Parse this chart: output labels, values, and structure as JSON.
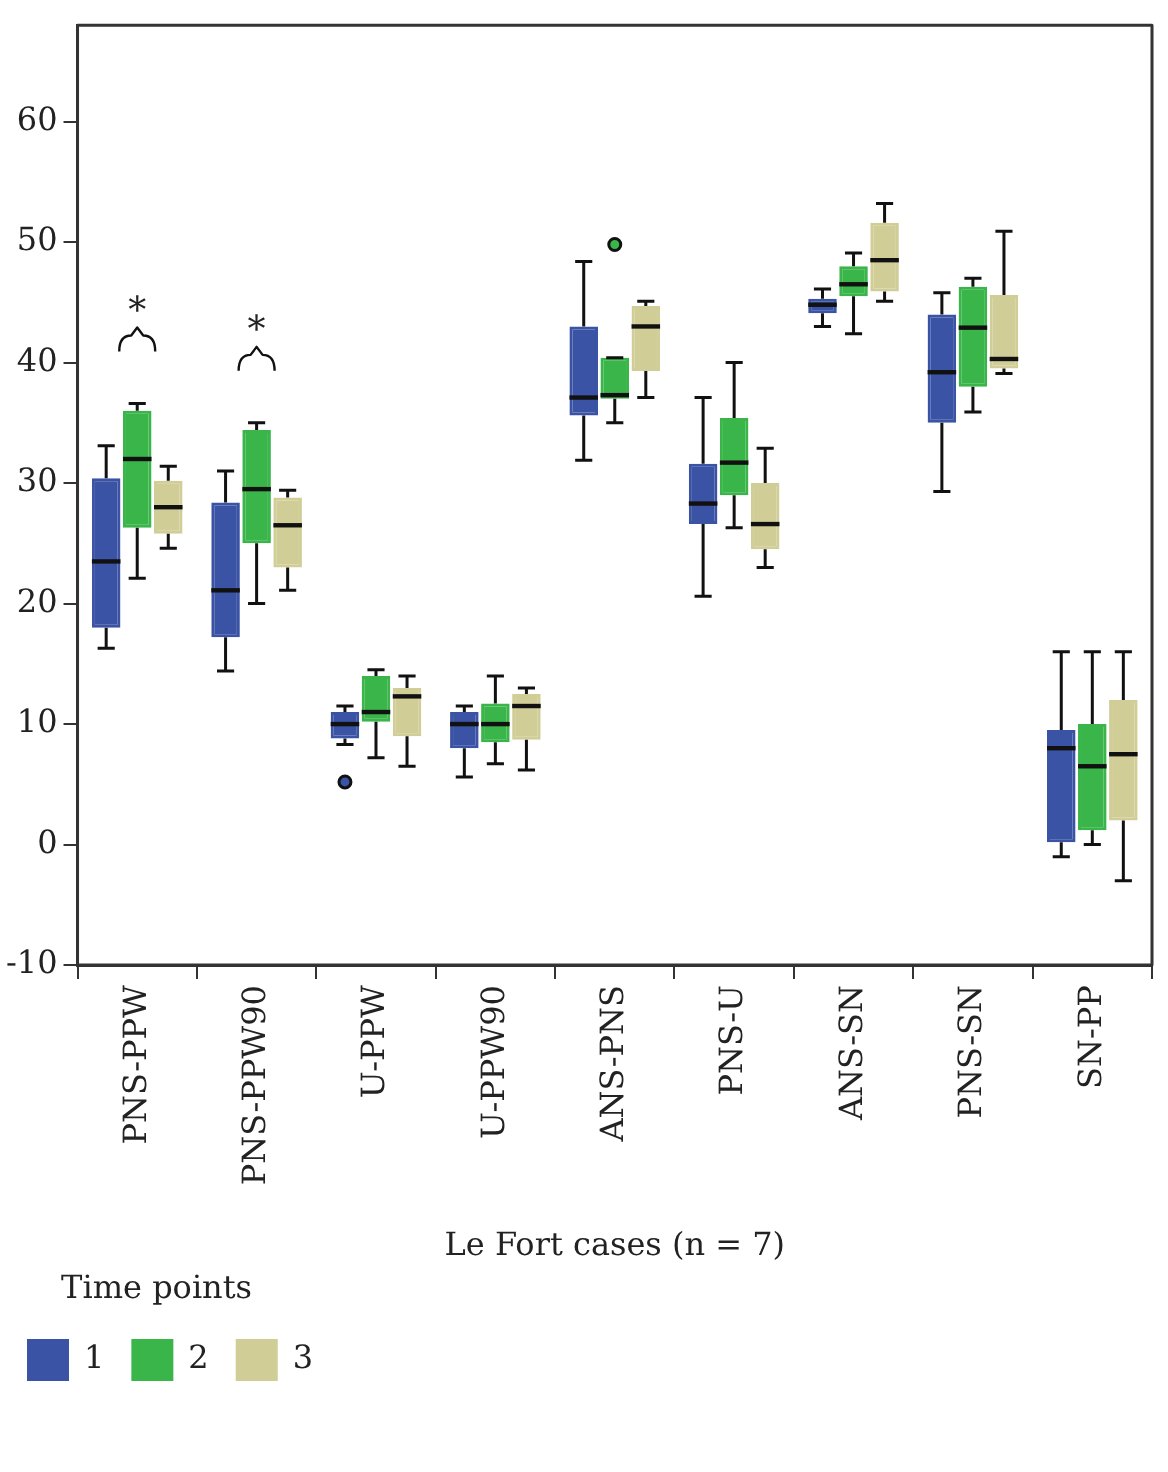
{
  "chart_data": {
    "type": "box",
    "xlabel": "Le Fort cases (n = 7)",
    "legend_title": "Time points",
    "legend": "bottom",
    "grid": false,
    "categories": [
      "PNS-PPW",
      "PNS-PPW90",
      "U-PPW",
      "U-PPW90",
      "ANS-PNS",
      "PNS-U",
      "ANS-SN",
      "PNS-SN",
      "SN-PP"
    ],
    "ylim": [
      -10,
      68
    ],
    "yticks": [
      -10,
      0,
      10,
      20,
      30,
      40,
      50,
      60
    ],
    "annotations": [
      "*",
      "*"
    ],
    "series": [
      {
        "name": "1",
        "color": "#3a53a4",
        "boxes": [
          {
            "low": 16.3,
            "q1": 18,
            "median": 23.5,
            "q3": 30.4,
            "high": 33.1
          },
          {
            "low": 14.4,
            "q1": 17.2,
            "median": 21.1,
            "q3": 28.4,
            "high": 31
          },
          {
            "low": 8.3,
            "q1": 8.8,
            "median": 10,
            "q3": 11,
            "high": 11.5,
            "outliers": [
              5.2
            ]
          },
          {
            "low": 5.6,
            "q1": 8,
            "median": 10,
            "q3": 11,
            "high": 11.5
          },
          {
            "low": 31.9,
            "q1": 35.6,
            "median": 37.1,
            "q3": 43,
            "high": 48.4
          },
          {
            "low": 20.6,
            "q1": 26.6,
            "median": 28.3,
            "q3": 31.6,
            "high": 37.1
          },
          {
            "low": 43,
            "q1": 44.1,
            "median": 44.8,
            "q3": 45.3,
            "high": 46.1
          },
          {
            "low": 29.3,
            "q1": 35,
            "median": 39.2,
            "q3": 44,
            "high": 45.8
          },
          {
            "low": -1,
            "q1": 0.2,
            "median": 8,
            "q3": 9.5,
            "high": 16
          }
        ]
      },
      {
        "name": "2",
        "color": "#3ab54a",
        "boxes": [
          {
            "low": 22.1,
            "q1": 26.3,
            "median": 32,
            "q3": 36,
            "high": 36.6
          },
          {
            "low": 20,
            "q1": 25,
            "median": 29.5,
            "q3": 34.4,
            "high": 35
          },
          {
            "low": 7.2,
            "q1": 10.2,
            "median": 11,
            "q3": 14,
            "high": 14.5
          },
          {
            "low": 6.7,
            "q1": 8.5,
            "median": 10,
            "q3": 11.7,
            "high": 14
          },
          {
            "low": 35,
            "q1": 37,
            "median": 37.3,
            "q3": 40.4,
            "high": 40.4,
            "outliers": [
              49.8
            ]
          },
          {
            "low": 26.3,
            "q1": 29,
            "median": 31.7,
            "q3": 35.4,
            "high": 40
          },
          {
            "low": 42.4,
            "q1": 45.5,
            "median": 46.5,
            "q3": 48,
            "high": 49.1
          },
          {
            "low": 35.9,
            "q1": 38,
            "median": 42.9,
            "q3": 46.3,
            "high": 47
          },
          {
            "low": 0,
            "q1": 1.2,
            "median": 6.5,
            "q3": 10,
            "high": 16
          }
        ]
      },
      {
        "name": "3",
        "color": "#d1cd97",
        "boxes": [
          {
            "low": 24.6,
            "q1": 25.8,
            "median": 28,
            "q3": 30.2,
            "high": 31.4
          },
          {
            "low": 21.1,
            "q1": 23,
            "median": 26.5,
            "q3": 28.8,
            "high": 29.4
          },
          {
            "low": 6.5,
            "q1": 9,
            "median": 12.3,
            "q3": 13,
            "high": 14
          },
          {
            "low": 6.2,
            "q1": 8.7,
            "median": 11.5,
            "q3": 12.5,
            "high": 13
          },
          {
            "low": 37.1,
            "q1": 39.3,
            "median": 43,
            "q3": 44.7,
            "high": 45.1
          },
          {
            "low": 23,
            "q1": 24.5,
            "median": 26.6,
            "q3": 30,
            "high": 32.9
          },
          {
            "low": 45.1,
            "q1": 45.9,
            "median": 48.5,
            "q3": 51.6,
            "high": 53.2
          },
          {
            "low": 39.1,
            "q1": 39.5,
            "median": 40.3,
            "q3": 45.6,
            "high": 50.9
          },
          {
            "low": -3,
            "q1": 2,
            "median": 7.5,
            "q3": 12,
            "high": 16
          }
        ]
      }
    ]
  }
}
